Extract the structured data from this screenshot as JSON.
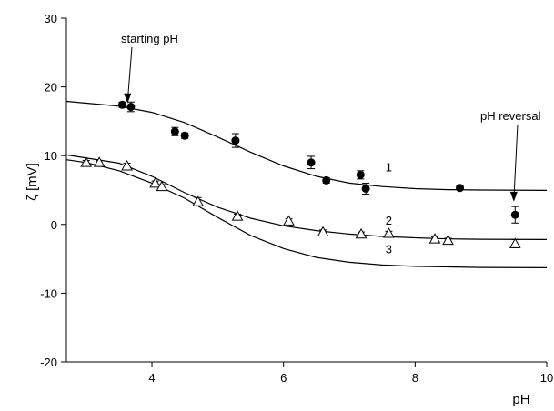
{
  "chart_data": {
    "type": "scatter",
    "title": "",
    "xlabel": "pH",
    "ylabel": "ζ [mV]",
    "xlim": [
      2.7,
      10
    ],
    "ylim": [
      -20,
      30
    ],
    "x_ticks": [
      4,
      6,
      8,
      10
    ],
    "y_ticks": [
      -20,
      -10,
      0,
      10,
      20,
      30
    ],
    "grid": false,
    "legend": "none",
    "series": [
      {
        "label": "1",
        "marker": "filled-circle",
        "points": [
          {
            "x": 3.55,
            "y": 17.4,
            "err": 0.4
          },
          {
            "x": 3.68,
            "y": 17.1,
            "err": 0.7
          },
          {
            "x": 4.35,
            "y": 13.5,
            "err": 0.6
          },
          {
            "x": 4.5,
            "y": 12.9,
            "err": 0.4
          },
          {
            "x": 5.27,
            "y": 12.2,
            "err": 1.0
          },
          {
            "x": 6.42,
            "y": 9.0,
            "err": 0.9
          },
          {
            "x": 6.65,
            "y": 6.4,
            "err": 0.4
          },
          {
            "x": 7.17,
            "y": 7.2,
            "err": 0.6
          },
          {
            "x": 7.25,
            "y": 5.2,
            "err": 0.8
          },
          {
            "x": 8.68,
            "y": 5.3,
            "err": 0.3
          },
          {
            "x": 9.52,
            "y": 1.4,
            "err": 1.2
          }
        ],
        "fit_curve": [
          {
            "x": 2.7,
            "y": 17.9
          },
          {
            "x": 3.5,
            "y": 17.2
          },
          {
            "x": 4.0,
            "y": 16.3
          },
          {
            "x": 4.5,
            "y": 14.8
          },
          {
            "x": 5.0,
            "y": 12.7
          },
          {
            "x": 5.5,
            "y": 10.5
          },
          {
            "x": 6.0,
            "y": 8.5
          },
          {
            "x": 6.5,
            "y": 7.0
          },
          {
            "x": 7.0,
            "y": 6.0
          },
          {
            "x": 7.5,
            "y": 5.5
          },
          {
            "x": 8.0,
            "y": 5.2
          },
          {
            "x": 8.5,
            "y": 5.05
          },
          {
            "x": 9.0,
            "y": 5.0
          },
          {
            "x": 10.0,
            "y": 4.95
          }
        ]
      },
      {
        "label": "2",
        "marker": "open-triangle",
        "points": [
          {
            "x": 3.0,
            "y": 9.0,
            "err": 0.3
          },
          {
            "x": 3.2,
            "y": 9.0,
            "err": 0.3
          },
          {
            "x": 3.62,
            "y": 8.5,
            "err": 0.4
          },
          {
            "x": 4.05,
            "y": 6.0,
            "err": 0.3
          },
          {
            "x": 4.15,
            "y": 5.5,
            "err": 0.3
          },
          {
            "x": 4.7,
            "y": 3.3,
            "err": 0.6
          },
          {
            "x": 5.3,
            "y": 1.2,
            "err": 0.3
          },
          {
            "x": 6.08,
            "y": 0.5,
            "err": 0.3
          },
          {
            "x": 6.6,
            "y": -1.1,
            "err": 0.3
          },
          {
            "x": 7.18,
            "y": -1.4,
            "err": 0.3
          },
          {
            "x": 7.6,
            "y": -1.3,
            "err": 0.3
          },
          {
            "x": 8.3,
            "y": -2.1,
            "err": 0.3
          },
          {
            "x": 8.5,
            "y": -2.3,
            "err": 0.3
          },
          {
            "x": 9.52,
            "y": -2.8,
            "err": 0.6
          }
        ],
        "fit_curve": [
          {
            "x": 2.7,
            "y": 10.1
          },
          {
            "x": 3.5,
            "y": 8.9
          },
          {
            "x": 4.0,
            "y": 7.0
          },
          {
            "x": 4.5,
            "y": 4.6
          },
          {
            "x": 5.0,
            "y": 2.5
          },
          {
            "x": 5.5,
            "y": 0.9
          },
          {
            "x": 6.0,
            "y": -0.2
          },
          {
            "x": 6.5,
            "y": -0.9
          },
          {
            "x": 7.0,
            "y": -1.4
          },
          {
            "x": 7.5,
            "y": -1.75
          },
          {
            "x": 8.0,
            "y": -1.95
          },
          {
            "x": 8.5,
            "y": -2.1
          },
          {
            "x": 9.0,
            "y": -2.15
          },
          {
            "x": 10.0,
            "y": -2.2
          }
        ]
      },
      {
        "label": "3",
        "marker": "none",
        "points": [],
        "fit_curve": [
          {
            "x": 2.7,
            "y": 9.4
          },
          {
            "x": 3.0,
            "y": 9.0
          },
          {
            "x": 3.5,
            "y": 7.8
          },
          {
            "x": 4.0,
            "y": 6.0
          },
          {
            "x": 4.5,
            "y": 3.8
          },
          {
            "x": 5.0,
            "y": 1.0
          },
          {
            "x": 5.5,
            "y": -1.6
          },
          {
            "x": 6.0,
            "y": -3.5
          },
          {
            "x": 6.5,
            "y": -4.8
          },
          {
            "x": 7.0,
            "y": -5.5
          },
          {
            "x": 7.5,
            "y": -5.9
          },
          {
            "x": 8.0,
            "y": -6.1
          },
          {
            "x": 9.0,
            "y": -6.25
          },
          {
            "x": 10.0,
            "y": -6.3
          }
        ]
      }
    ],
    "curve_labels": [
      {
        "text": "1",
        "x": 7.6,
        "y": 7.7
      },
      {
        "text": "2",
        "x": 7.6,
        "y": 0.0
      },
      {
        "text": "3",
        "x": 7.6,
        "y": -4.2
      }
    ],
    "annotations": [
      {
        "text": "starting pH",
        "arrow_to": {
          "x": 3.63,
          "y": 17.6
        }
      },
      {
        "text": "pH reversal",
        "arrow_to": {
          "x": 9.5,
          "y": 3.3
        }
      }
    ]
  }
}
